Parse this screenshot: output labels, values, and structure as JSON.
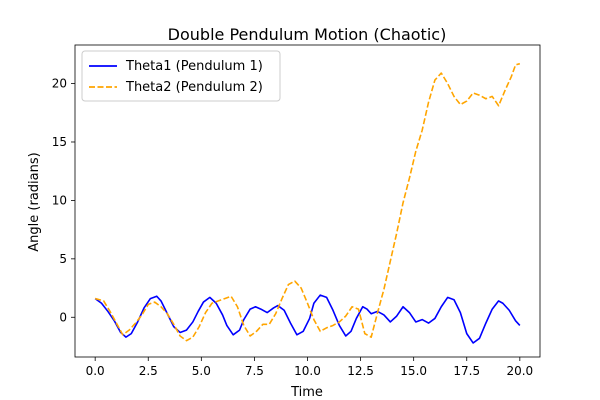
{
  "chart_data": {
    "type": "line",
    "title": "Double Pendulum Motion (Chaotic)",
    "xlabel": "Time",
    "ylabel": "Angle (radians)",
    "xlim": [
      -0.95,
      20.95
    ],
    "ylim": [
      -3.4,
      23.3
    ],
    "xticks": [
      0.0,
      2.5,
      5.0,
      7.5,
      10.0,
      12.5,
      15.0,
      17.5,
      20.0
    ],
    "xtick_labels": [
      "0.0",
      "2.5",
      "5.0",
      "7.5",
      "10.0",
      "12.5",
      "15.0",
      "17.5",
      "20.0"
    ],
    "yticks": [
      0,
      5,
      10,
      15,
      20
    ],
    "ytick_labels": [
      "0",
      "5",
      "10",
      "15",
      "20"
    ],
    "grid": false,
    "legend_position": "top-left",
    "series": [
      {
        "name": "Theta1 (Pendulum 1)",
        "color": "#0000ff",
        "style": "solid",
        "x": [
          0.0,
          0.3,
          0.6,
          0.9,
          1.2,
          1.45,
          1.7,
          2.0,
          2.3,
          2.6,
          2.9,
          3.1,
          3.4,
          3.7,
          4.0,
          4.3,
          4.6,
          4.85,
          5.1,
          5.4,
          5.7,
          6.0,
          6.2,
          6.5,
          6.8,
          7.0,
          7.3,
          7.55,
          7.8,
          8.1,
          8.4,
          8.6,
          8.9,
          9.2,
          9.5,
          9.8,
          10.1,
          10.3,
          10.6,
          10.9,
          11.2,
          11.5,
          11.8,
          12.05,
          12.3,
          12.6,
          12.8,
          13.0,
          13.3,
          13.6,
          13.9,
          14.2,
          14.5,
          14.8,
          15.1,
          15.4,
          15.7,
          16.0,
          16.3,
          16.6,
          16.9,
          17.2,
          17.5,
          17.8,
          18.1,
          18.4,
          18.7,
          19.0,
          19.2,
          19.5,
          19.8,
          20.0
        ],
        "y": [
          1.6,
          1.2,
          0.5,
          -0.3,
          -1.3,
          -1.7,
          -1.4,
          -0.4,
          0.8,
          1.6,
          1.8,
          1.4,
          0.3,
          -0.8,
          -1.3,
          -1.1,
          -0.4,
          0.5,
          1.3,
          1.7,
          1.2,
          0.2,
          -0.7,
          -1.5,
          -1.1,
          -0.2,
          0.7,
          0.9,
          0.7,
          0.4,
          0.8,
          1.0,
          0.6,
          -0.5,
          -1.5,
          -1.2,
          -0.1,
          1.2,
          1.9,
          1.7,
          0.6,
          -0.7,
          -1.6,
          -1.2,
          -0.1,
          0.9,
          0.7,
          0.3,
          0.5,
          0.2,
          -0.4,
          0.1,
          0.9,
          0.4,
          -0.4,
          -0.2,
          -0.5,
          -0.1,
          0.9,
          1.7,
          1.5,
          0.4,
          -1.4,
          -2.2,
          -1.8,
          -0.5,
          0.7,
          1.4,
          1.2,
          0.6,
          -0.3,
          -0.7
        ]
      },
      {
        "name": "Theta2 (Pendulum 2)",
        "color": "#ffa500",
        "style": "dashed",
        "x": [
          0.0,
          0.4,
          0.7,
          1.0,
          1.3,
          1.6,
          1.9,
          2.2,
          2.5,
          2.8,
          3.1,
          3.4,
          3.7,
          4.0,
          4.3,
          4.6,
          4.9,
          5.2,
          5.5,
          5.8,
          6.1,
          6.4,
          6.7,
          7.0,
          7.3,
          7.6,
          7.9,
          8.2,
          8.5,
          8.8,
          9.1,
          9.4,
          9.7,
          10.0,
          10.3,
          10.6,
          10.9,
          11.2,
          11.5,
          11.8,
          12.1,
          12.4,
          12.7,
          13.0,
          13.3,
          13.6,
          13.9,
          14.2,
          14.5,
          14.8,
          15.1,
          15.4,
          15.7,
          16.0,
          16.3,
          16.6,
          16.9,
          17.2,
          17.5,
          17.8,
          18.1,
          18.4,
          18.7,
          19.0,
          19.3,
          19.6,
          19.8,
          20.0
        ],
        "y": [
          1.6,
          1.4,
          0.5,
          -0.5,
          -1.5,
          -1.1,
          -0.5,
          0.2,
          1.1,
          1.3,
          0.9,
          0.3,
          -0.6,
          -1.6,
          -2.0,
          -1.7,
          -0.8,
          0.4,
          1.2,
          1.4,
          1.6,
          1.8,
          0.9,
          -0.7,
          -1.6,
          -1.2,
          -0.6,
          -0.6,
          0.3,
          1.6,
          2.8,
          3.1,
          2.5,
          1.2,
          -0.2,
          -1.2,
          -0.9,
          -0.7,
          -0.4,
          0.1,
          0.9,
          0.7,
          -1.4,
          -1.7,
          0.4,
          2.4,
          4.8,
          7.2,
          9.8,
          11.9,
          14.2,
          16.0,
          18.4,
          20.3,
          20.9,
          20.0,
          18.9,
          18.2,
          18.5,
          19.2,
          19.0,
          18.7,
          18.9,
          18.1,
          19.4,
          20.6,
          21.6,
          21.7
        ]
      }
    ]
  }
}
